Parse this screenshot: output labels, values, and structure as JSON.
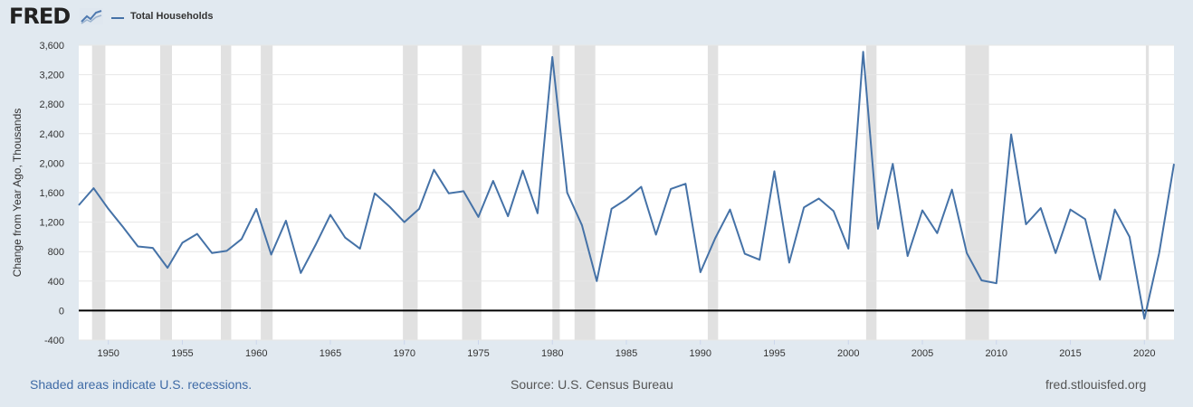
{
  "header": {
    "logo_text": "FRED",
    "logo_icon": "chart-line-icon"
  },
  "footer": {
    "recession_note": "Shaded areas indicate U.S. recessions.",
    "source": "Source: U.S. Census Bureau",
    "site": "fred.stlouisfed.org"
  },
  "colors": {
    "series": "#4572a7",
    "recession": "#e1e1e1",
    "plot_bg": "#ffffff",
    "page_bg": "#e1e9f0"
  },
  "chart_data": {
    "type": "line",
    "title": "",
    "xlabel": "",
    "ylabel": "Change from Year Ago, Thousands",
    "xlim": [
      1948,
      2022
    ],
    "ylim": [
      -400,
      3600
    ],
    "y_ticks": [
      -400,
      0,
      400,
      800,
      1200,
      1600,
      2000,
      2400,
      2800,
      3200,
      3600
    ],
    "y_tick_labels": [
      "-400",
      "0",
      "400",
      "800",
      "1,200",
      "1,600",
      "2,000",
      "2,400",
      "2,800",
      "3,200",
      "3,600"
    ],
    "x_ticks": [
      1950,
      1955,
      1960,
      1965,
      1970,
      1975,
      1980,
      1985,
      1990,
      1995,
      2000,
      2005,
      2010,
      2015,
      2020
    ],
    "x_tick_labels": [
      "1950",
      "1955",
      "1960",
      "1965",
      "1970",
      "1975",
      "1980",
      "1985",
      "1990",
      "1995",
      "2000",
      "2005",
      "2010",
      "2015",
      "2020"
    ],
    "grid": "horizontal",
    "legend": "top-left",
    "recessions": [
      [
        1948.9,
        1949.8
      ],
      [
        1953.5,
        1954.3
      ],
      [
        1957.6,
        1958.3
      ],
      [
        1960.3,
        1961.1
      ],
      [
        1969.9,
        1970.9
      ],
      [
        1973.9,
        1975.2
      ],
      [
        1980.0,
        1980.5
      ],
      [
        1981.5,
        1982.9
      ],
      [
        1990.5,
        1991.2
      ],
      [
        2001.2,
        2001.9
      ],
      [
        2007.9,
        2009.5
      ],
      [
        2020.1,
        2020.3
      ]
    ],
    "series": [
      {
        "name": "Total Households",
        "x": [
          1948,
          1949,
          1950,
          1951,
          1952,
          1953,
          1954,
          1955,
          1956,
          1957,
          1958,
          1959,
          1960,
          1961,
          1962,
          1963,
          1964,
          1965,
          1966,
          1967,
          1968,
          1969,
          1970,
          1971,
          1972,
          1973,
          1974,
          1975,
          1976,
          1977,
          1978,
          1979,
          1980,
          1981,
          1982,
          1983,
          1984,
          1985,
          1986,
          1987,
          1988,
          1989,
          1990,
          1991,
          1992,
          1993,
          1994,
          1995,
          1996,
          1997,
          1998,
          1999,
          2000,
          2001,
          2002,
          2003,
          2004,
          2005,
          2006,
          2007,
          2008,
          2009,
          2010,
          2011,
          2012,
          2013,
          2014,
          2015,
          2016,
          2017,
          2018,
          2019,
          2020,
          2021,
          2022
        ],
        "values": [
          1430,
          1660,
          1380,
          1130,
          870,
          850,
          580,
          920,
          1040,
          780,
          810,
          970,
          1380,
          760,
          1220,
          510,
          890,
          1300,
          990,
          840,
          1590,
          1410,
          1200,
          1380,
          1910,
          1590,
          1620,
          1270,
          1760,
          1280,
          1900,
          1320,
          3440,
          1600,
          1160,
          400,
          1380,
          1510,
          1680,
          1030,
          1650,
          1720,
          520,
          980,
          1370,
          770,
          690,
          1890,
          650,
          1400,
          1520,
          1350,
          840,
          3510,
          1110,
          1990,
          740,
          1360,
          1050,
          1640,
          780,
          410,
          370,
          2390,
          1170,
          1390,
          780,
          1370,
          1240,
          420,
          1370,
          1000,
          -110,
          780,
          1990
        ]
      }
    ]
  }
}
